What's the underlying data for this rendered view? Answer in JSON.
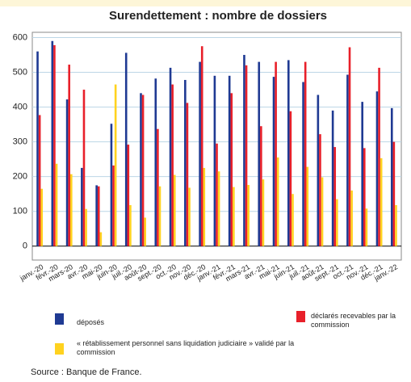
{
  "chart_data": {
    "type": "bar",
    "title": "Surendettement : nombre de dossiers",
    "categories": [
      "janv.-20",
      "févr.-20",
      "mars-20",
      "avr.-20",
      "mai-20",
      "juin-20",
      "juil.-20",
      "août-20",
      "sept.-20",
      "oct.-20",
      "nov.-20",
      "déc.-20",
      "janv.-21",
      "févr.-21",
      "mars-21",
      "avr.-21",
      "mai-21",
      "juin-21",
      "juil.-21",
      "août-21",
      "sept.-21",
      "oct.-21",
      "nov.-21",
      "déc.-21",
      "janv.-22"
    ],
    "series": [
      {
        "name": "déposés",
        "color": "#1f3a93",
        "values": [
          560,
          590,
          422,
          225,
          175,
          352,
          556,
          440,
          482,
          513,
          478,
          530,
          490,
          490,
          550,
          530,
          487,
          535,
          472,
          435,
          390,
          493,
          415,
          445,
          397
        ]
      },
      {
        "name": "déclarés recevables par la commission",
        "color": "#e8202a",
        "values": [
          377,
          578,
          522,
          450,
          172,
          232,
          292,
          435,
          337,
          465,
          412,
          575,
          295,
          440,
          520,
          345,
          530,
          388,
          530,
          322,
          285,
          572,
          282,
          513,
          300
        ]
      },
      {
        "name": "« rétablissement personnel sans liquidation judiciaire » validé par la commission",
        "color": "#ffd21f",
        "values": [
          165,
          237,
          207,
          107,
          40,
          465,
          118,
          82,
          172,
          205,
          168,
          225,
          215,
          170,
          176,
          192,
          255,
          150,
          228,
          198,
          135,
          160,
          108,
          253,
          118
        ]
      }
    ],
    "ylim": [
      -40,
      615
    ],
    "yticks": [
      0,
      100,
      200,
      300,
      400,
      500,
      600
    ],
    "grid": true,
    "source": "Source : Banque de France."
  }
}
